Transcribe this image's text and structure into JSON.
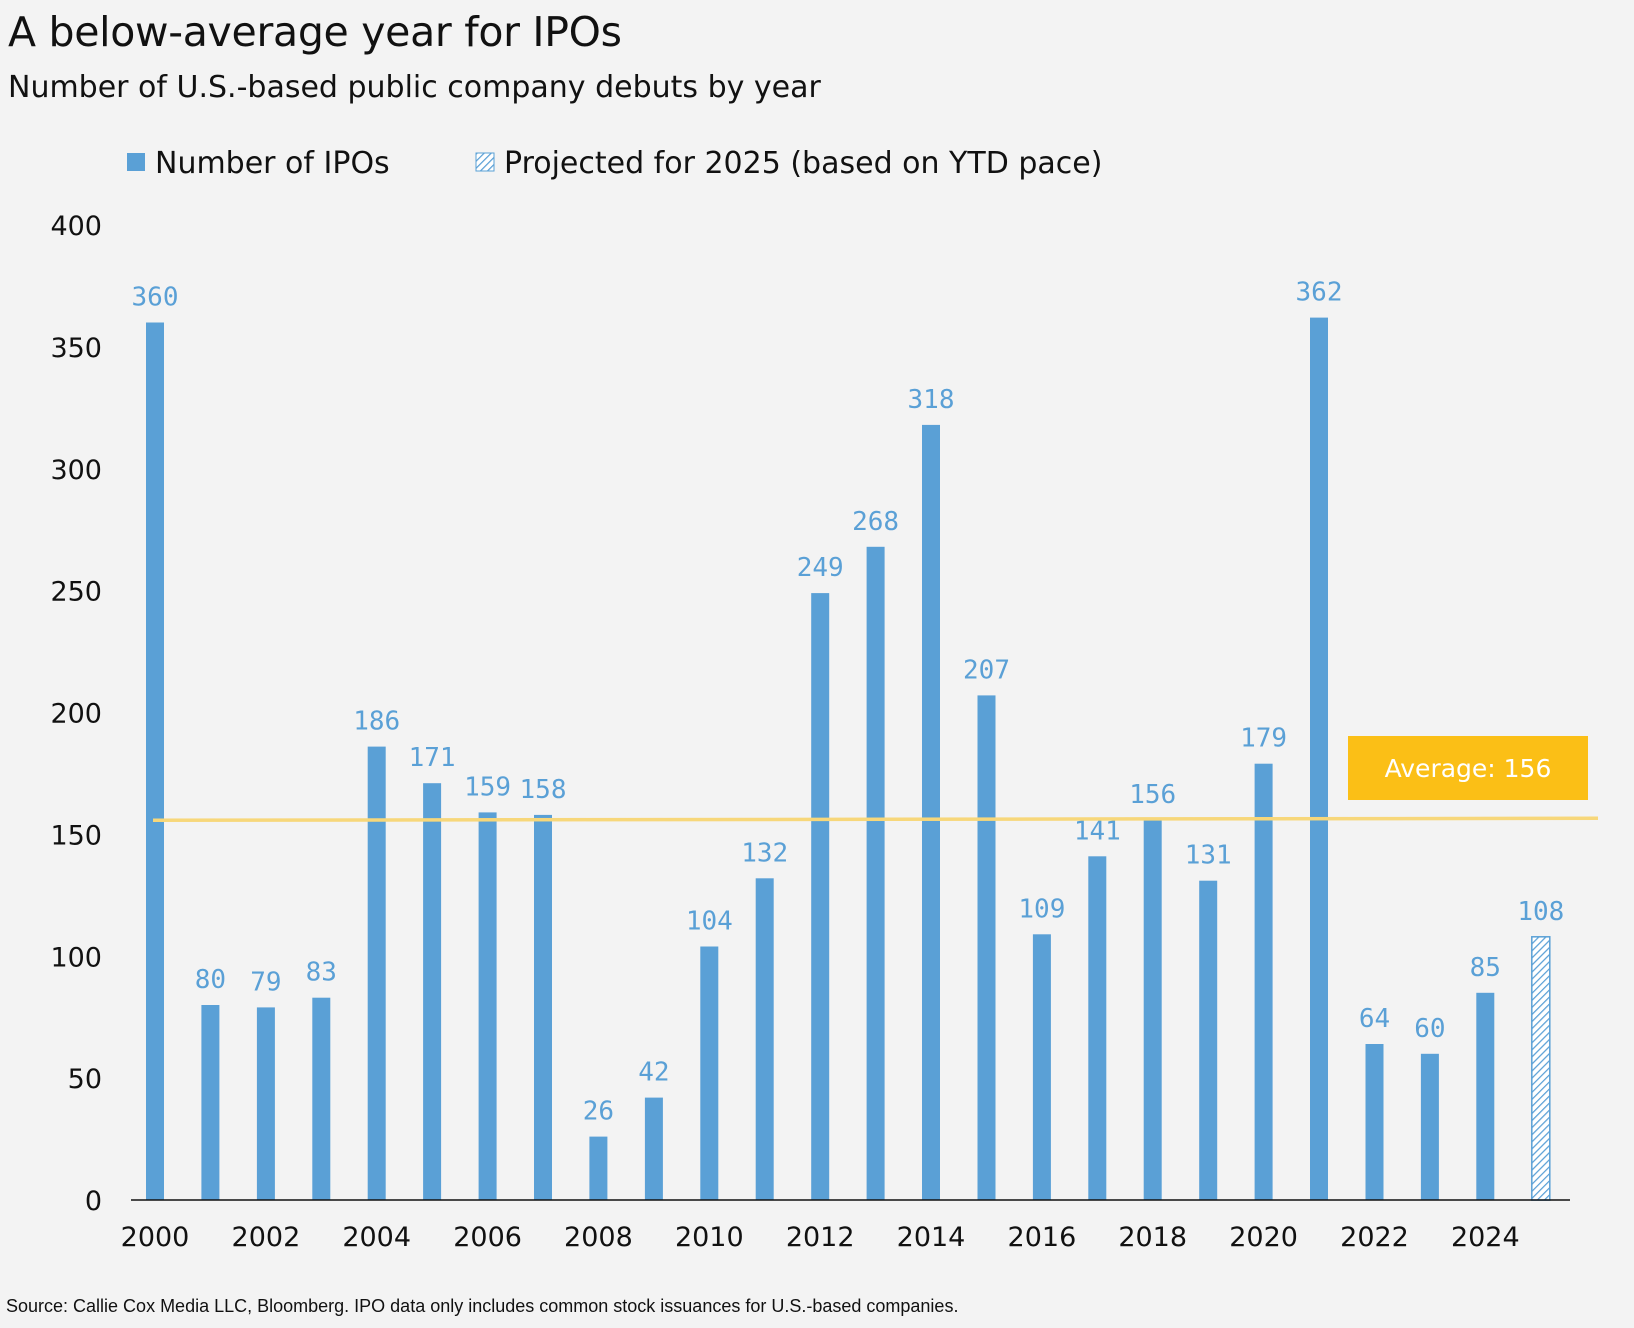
{
  "chart_data": {
    "type": "bar",
    "title": "A below-average year for IPOs",
    "subtitle": "Number of U.S.-based public company debuts by year",
    "source": "Source: Callie Cox Media LLC, Bloomberg. IPO data only includes common stock issuances for U.S.-based companies.",
    "categories": [
      "2000",
      "2001",
      "2002",
      "2003",
      "2004",
      "2005",
      "2006",
      "2007",
      "2008",
      "2009",
      "2010",
      "2011",
      "2012",
      "2013",
      "2014",
      "2015",
      "2016",
      "2017",
      "2018",
      "2019",
      "2020",
      "2021",
      "2022",
      "2023",
      "2024",
      "2025"
    ],
    "x_tick_labels": [
      "2000",
      "2002",
      "2004",
      "2006",
      "2008",
      "2010",
      "2012",
      "2014",
      "2016",
      "2018",
      "2020",
      "2022",
      "2024"
    ],
    "series": [
      {
        "name": "Number of IPOs",
        "values": [
          360,
          80,
          79,
          83,
          186,
          171,
          159,
          158,
          26,
          42,
          104,
          132,
          249,
          268,
          318,
          207,
          109,
          141,
          156,
          131,
          179,
          362,
          64,
          60,
          85,
          null
        ],
        "color": "#5aa0d6"
      },
      {
        "name": "Projected for 2025 (based on YTD pace)",
        "values": [
          null,
          null,
          null,
          null,
          null,
          null,
          null,
          null,
          null,
          null,
          null,
          null,
          null,
          null,
          null,
          null,
          null,
          null,
          null,
          null,
          null,
          null,
          null,
          null,
          null,
          108
        ],
        "color": "#5aa0d6",
        "pattern": "hatched"
      }
    ],
    "ylim": [
      0,
      400
    ],
    "yticks": [
      0,
      50,
      100,
      150,
      200,
      250,
      300,
      350,
      400
    ],
    "gridlines": false,
    "legend_position": "top-left",
    "average_line": {
      "value": 156,
      "label": "Average: 156",
      "color": "#f7d77a",
      "label_bg": "#fbbf16"
    },
    "xlabel": "",
    "ylabel": ""
  }
}
